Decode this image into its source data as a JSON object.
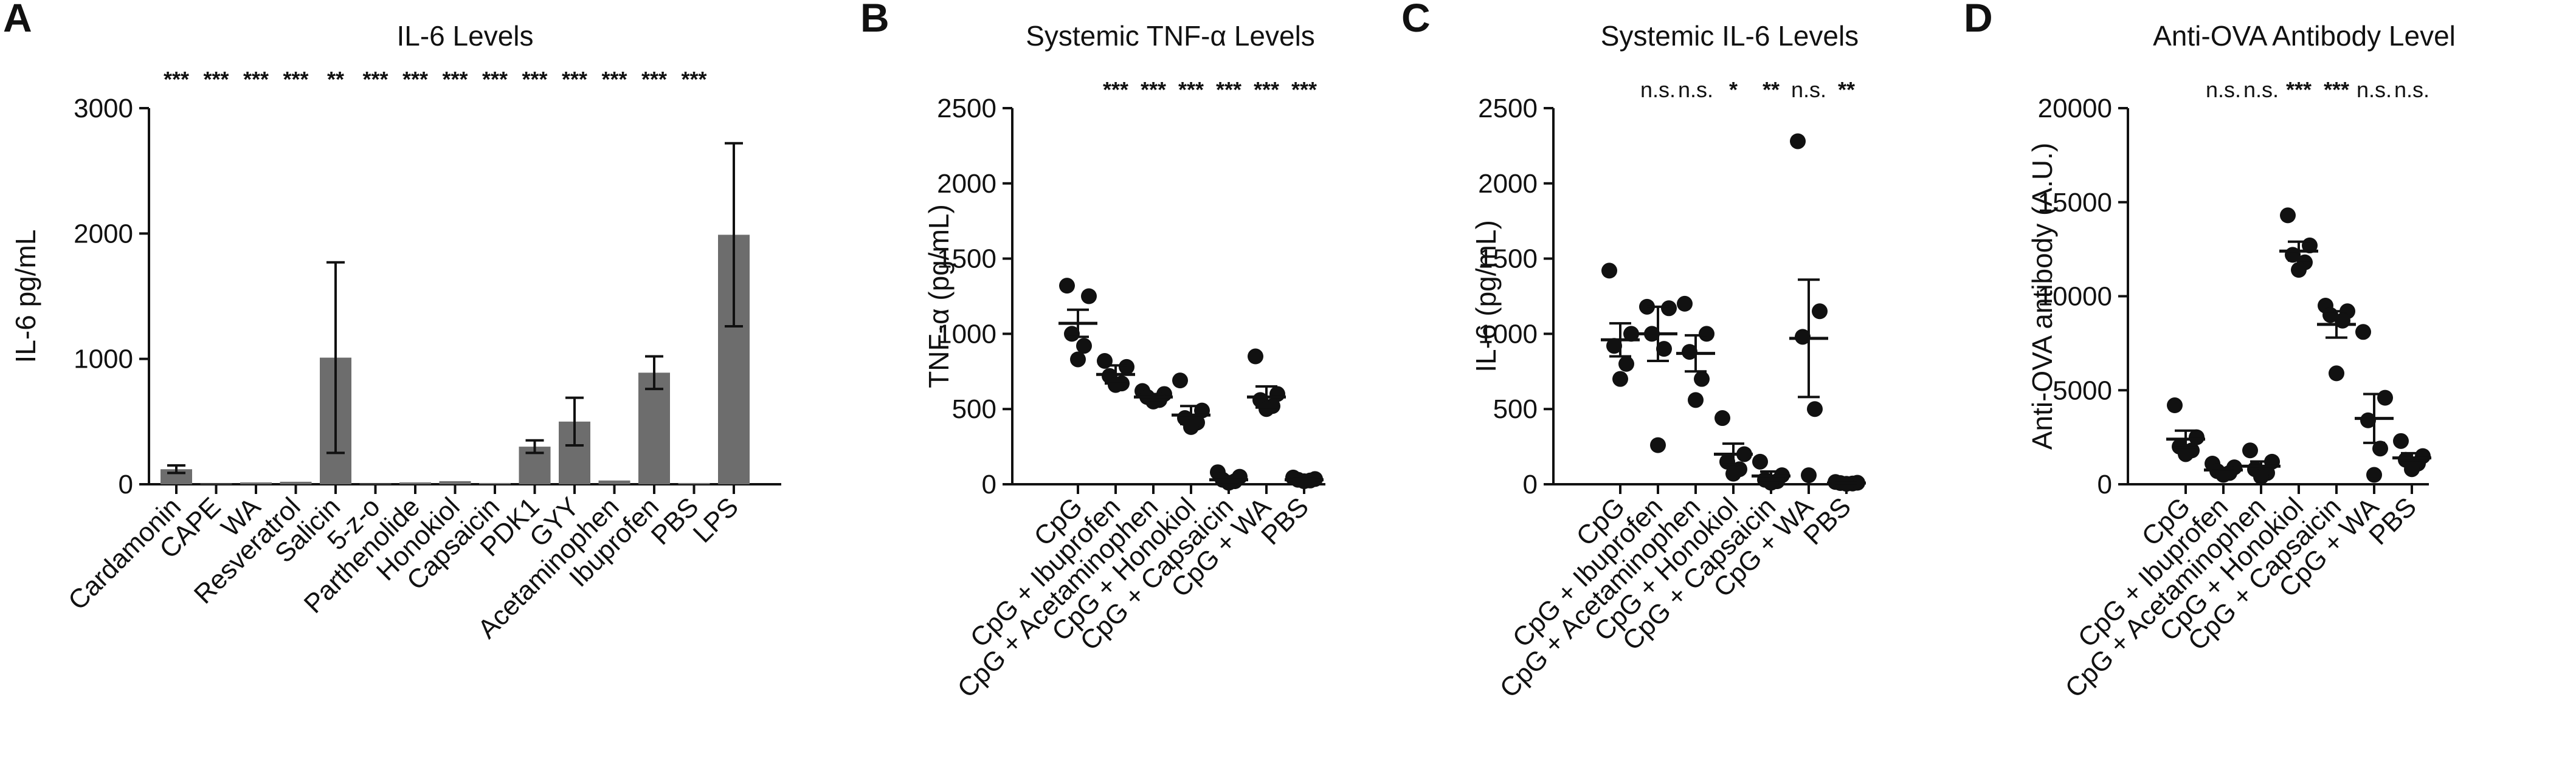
{
  "colors": {
    "bar": "#6d6d6d",
    "ink": "#111111"
  },
  "chart_data": [
    {
      "panel": "A",
      "type": "bar",
      "title": "IL-6 Levels",
      "xlabel": "",
      "ylabel": "IL-6 pg/mL",
      "ylim": [
        0,
        3000
      ],
      "yticks": [
        0,
        1000,
        2000,
        3000
      ],
      "categories": [
        "Cardamonin",
        "CAPE",
        "WA",
        "Resveratrol",
        "Salicin",
        "5-z-o",
        "Parthenolide",
        "Honokiol",
        "Capsaicin",
        "PDK1",
        "GYY",
        "Acetaminophen",
        "Ibuprofen",
        "PBS",
        "LPS"
      ],
      "values": [
        120,
        5,
        15,
        20,
        1010,
        5,
        15,
        25,
        10,
        300,
        500,
        30,
        890,
        10,
        1990
      ],
      "errors": [
        30,
        0,
        0,
        0,
        760,
        0,
        0,
        0,
        0,
        50,
        190,
        0,
        130,
        0,
        730
      ],
      "significance": [
        "***",
        "***",
        "***",
        "***",
        "**",
        "***",
        "***",
        "***",
        "***",
        "***",
        "***",
        "***",
        "***",
        "***",
        ""
      ]
    },
    {
      "panel": "B",
      "type": "scatter",
      "title": "Systemic TNF-α Levels",
      "xlabel": "",
      "ylabel": "TNF-α (pg/mL)",
      "ylim": [
        0,
        2500
      ],
      "yticks": [
        0,
        500,
        1000,
        1500,
        2000,
        2500
      ],
      "categories": [
        "CpG",
        "CpG + Ibuprofen",
        "CpG + Acetaminophen",
        "CpG + Honokiol",
        "CpG + Capsaicin",
        "CpG + WA",
        "PBS"
      ],
      "points": [
        [
          1320,
          1250,
          1000,
          920,
          830
        ],
        [
          820,
          780,
          720,
          670,
          660
        ],
        [
          620,
          600,
          580,
          560,
          550
        ],
        [
          690,
          490,
          440,
          410,
          380
        ],
        [
          80,
          50,
          30,
          20,
          10
        ],
        [
          850,
          600,
          560,
          520,
          500
        ],
        [
          45,
          35,
          30,
          25,
          20
        ]
      ],
      "means": [
        1070,
        730,
        580,
        460,
        30,
        580,
        30
      ],
      "sems": [
        90,
        60,
        20,
        60,
        15,
        70,
        8
      ],
      "significance": [
        "",
        "***",
        "***",
        "***",
        "***",
        "***",
        "***"
      ]
    },
    {
      "panel": "C",
      "type": "scatter",
      "title": "Systemic IL-6 Levels",
      "xlabel": "",
      "ylabel": "IL-6 (pg/mL)",
      "ylim": [
        0,
        2500
      ],
      "yticks": [
        0,
        500,
        1000,
        1500,
        2000,
        2500
      ],
      "categories": [
        "CpG",
        "CpG + Ibuprofen",
        "CpG + Acetaminophen",
        "CpG + Honokiol",
        "CpG + Capsaicin",
        "CpG + WA",
        "PBS"
      ],
      "points": [
        [
          1420,
          1000,
          920,
          800,
          700
        ],
        [
          1180,
          1170,
          1000,
          900,
          260
        ],
        [
          1200,
          1000,
          880,
          700,
          560
        ],
        [
          440,
          200,
          150,
          100,
          70
        ],
        [
          150,
          60,
          30,
          20,
          10
        ],
        [
          2280,
          1150,
          980,
          500,
          60
        ],
        [
          15,
          10,
          8,
          5,
          3
        ]
      ],
      "means": [
        960,
        1000,
        870,
        200,
        55,
        970,
        8
      ],
      "sems": [
        110,
        180,
        120,
        70,
        30,
        390,
        3
      ],
      "significance": [
        "",
        "n.s.",
        "n.s.",
        "*",
        "**",
        "n.s.",
        "**"
      ]
    },
    {
      "panel": "D",
      "type": "scatter",
      "title": "Anti-OVA Antibody Level",
      "xlabel": "",
      "ylabel": "Anti-OVA antibody  (A.U.)",
      "ylim": [
        0,
        20000
      ],
      "yticks": [
        0,
        5000,
        10000,
        15000,
        20000
      ],
      "categories": [
        "CpG",
        "CpG + Ibuprofen",
        "CpG + Acetaminophen",
        "CpG + Honokiol",
        "CpG + Capsaicin",
        "CpG + WA",
        "PBS"
      ],
      "points": [
        [
          4200,
          2500,
          2000,
          1800,
          1600
        ],
        [
          1100,
          900,
          700,
          600,
          500
        ],
        [
          1800,
          1200,
          800,
          600,
          400
        ],
        [
          14300,
          12700,
          12200,
          11800,
          11400
        ],
        [
          9500,
          9200,
          9000,
          8700,
          5900
        ],
        [
          8100,
          4600,
          3400,
          1900,
          500
        ],
        [
          2300,
          1500,
          1300,
          1100,
          800
        ]
      ],
      "means": [
        2400,
        760,
        960,
        12400,
        8500,
        3500,
        1400
      ],
      "sems": [
        450,
        110,
        250,
        500,
        700,
        1300,
        250
      ],
      "significance": [
        "",
        "n.s.",
        "n.s.",
        "***",
        "***",
        "n.s.",
        "n.s."
      ]
    }
  ]
}
